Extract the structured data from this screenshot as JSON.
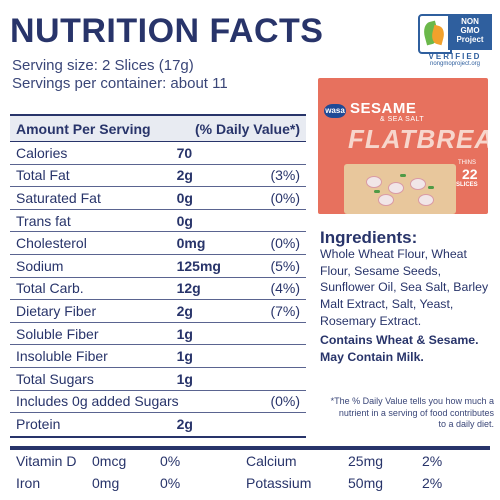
{
  "header": {
    "title": "NUTRITION FACTS",
    "serving_size": "Serving size: 2 Slices (17g)",
    "servings_per_container": "Servings per container: about 11"
  },
  "badge": {
    "line1": "NON",
    "line2": "GMO",
    "line3": "Project",
    "verified": "VERIFIED",
    "url": "nongmoproject.org",
    "colors": {
      "blue": "#2f5f9e",
      "green": "#6bb84a",
      "orange": "#f2a12c"
    }
  },
  "table": {
    "header_left": "Amount Per Serving",
    "header_right": "(% Daily Value*)",
    "rows": [
      {
        "name": "Calories",
        "amount": "70",
        "dv": ""
      },
      {
        "name": "Total Fat",
        "amount": "2g",
        "dv": "(3%)"
      },
      {
        "name": "Saturated Fat",
        "amount": "0g",
        "dv": "(0%)"
      },
      {
        "name": "Trans fat",
        "amount": "0g",
        "dv": ""
      },
      {
        "name": "Cholesterol",
        "amount": "0mg",
        "dv": "(0%)"
      },
      {
        "name": "Sodium",
        "amount": "125mg",
        "dv": "(5%)"
      },
      {
        "name": "Total Carb.",
        "amount": "12g",
        "dv": "(4%)"
      },
      {
        "name": "Dietary Fiber",
        "amount": "2g",
        "dv": "(7%)"
      },
      {
        "name": "Soluble Fiber",
        "amount": "1g",
        "dv": ""
      },
      {
        "name": "Insoluble Fiber",
        "amount": "1g",
        "dv": ""
      },
      {
        "name": "Total Sugars",
        "amount": "1g",
        "dv": ""
      },
      {
        "name": "Includes 0g added Sugars",
        "amount": "",
        "dv": "(0%)"
      },
      {
        "name": "Protein",
        "amount": "2g",
        "dv": ""
      }
    ]
  },
  "product": {
    "brand": "wasa",
    "flavor": "SESAME",
    "flavor_sub": "& SEA SALT",
    "name": "FLATBREAD",
    "thins": "THINS",
    "count": "22",
    "slices": "SLICES",
    "colors": {
      "box": "#e7715e",
      "cracker": "#e8c79c"
    }
  },
  "ingredients": {
    "title": "Ingredients:",
    "text": "Whole Wheat Flour, Wheat Flour, Sesame Seeds, Sunflower Oil, Sea Salt, Barley Malt Extract, Salt, Yeast, Rosemary Extract.",
    "contains": "Contains Wheat & Sesame. May Contain Milk."
  },
  "footnote": "*The % Daily Value tells you how much a nutrient in a serving of food contributes to a daily diet.",
  "vitamins": [
    {
      "n1": "Vitamin D",
      "a1": "0mcg",
      "p1": "0%",
      "n2": "Calcium",
      "a2": "25mg",
      "p2": "2%"
    },
    {
      "n1": "Iron",
      "a1": "0mg",
      "p1": "0%",
      "n2": "Potassium",
      "a2": "50mg",
      "p2": "2%"
    }
  ],
  "colors": {
    "text": "#28346a",
    "header_band": "#e8ebf2"
  }
}
